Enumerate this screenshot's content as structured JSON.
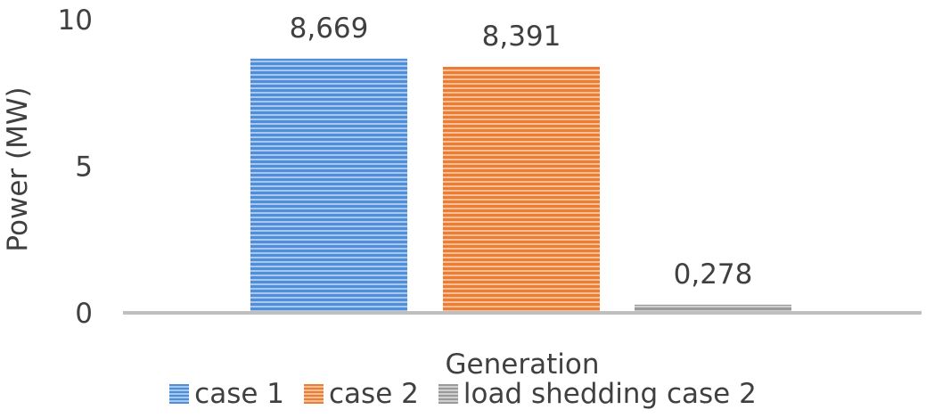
{
  "chart_data": {
    "type": "bar",
    "title": "",
    "xlabel": "Generation",
    "ylabel": "Power (MW)",
    "categories": [
      "Generation"
    ],
    "ylim": [
      0,
      10
    ],
    "yticks": [
      0,
      5,
      10
    ],
    "ytick_labels": [
      "0",
      "5",
      "10"
    ],
    "series": [
      {
        "name": "case 1",
        "values": [
          8.669
        ],
        "label": "8,669",
        "color": "#4f8fd9",
        "stripe": "#a9c8ee"
      },
      {
        "name": "case 2",
        "values": [
          8.391
        ],
        "label": "8,391",
        "color": "#ed7d31",
        "stripe": "#f7bf9a"
      },
      {
        "name": "load shedding case 2",
        "values": [
          0.278
        ],
        "label": "0,278",
        "color": "#9a9a9a",
        "stripe": "#cfcfcf"
      }
    ],
    "legend_position": "bottom",
    "grid": false
  }
}
